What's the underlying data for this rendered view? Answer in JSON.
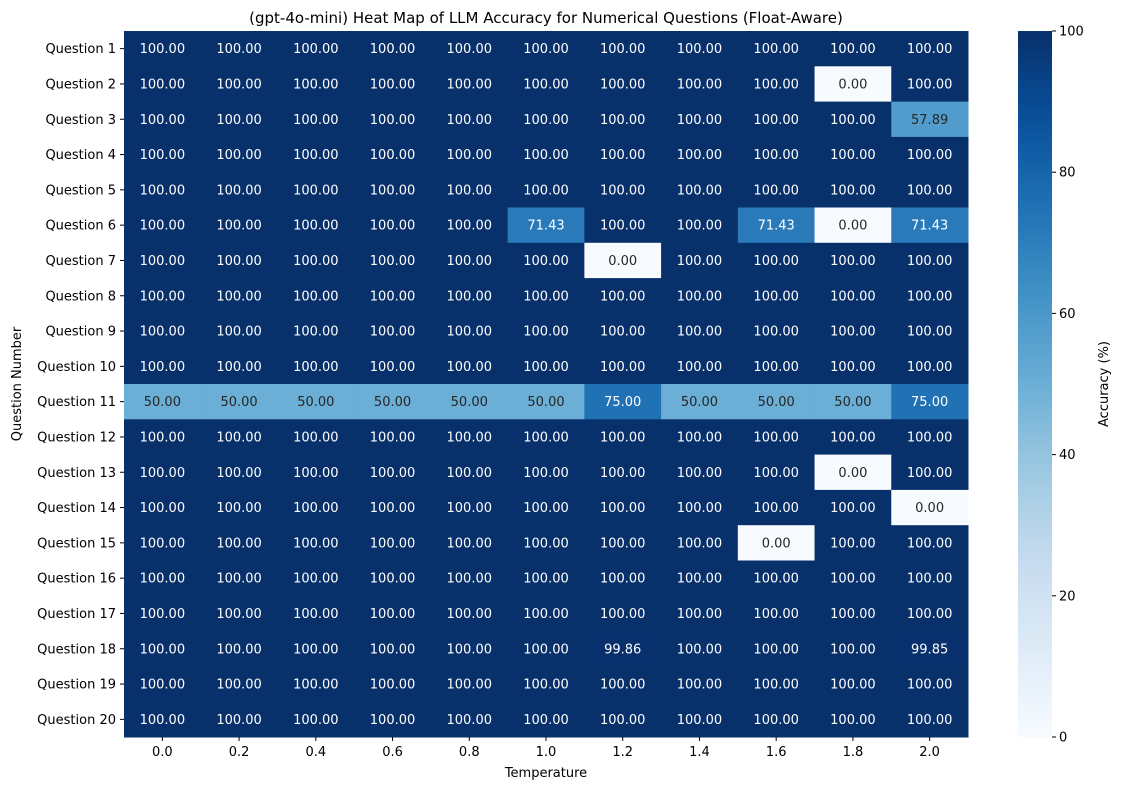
{
  "chart_data": {
    "type": "heatmap",
    "title": "(gpt-4o-mini) Heat Map of LLM Accuracy for Numerical Questions (Float-Aware)",
    "xlabel": "Temperature",
    "ylabel": "Question Number",
    "x": [
      "0.0",
      "0.2",
      "0.4",
      "0.6",
      "0.8",
      "1.0",
      "1.2",
      "1.4",
      "1.6",
      "1.8",
      "2.0"
    ],
    "y": [
      "Question 1",
      "Question 2",
      "Question 3",
      "Question 4",
      "Question 5",
      "Question 6",
      "Question 7",
      "Question 8",
      "Question 9",
      "Question 10",
      "Question 11",
      "Question 12",
      "Question 13",
      "Question 14",
      "Question 15",
      "Question 16",
      "Question 17",
      "Question 18",
      "Question 19",
      "Question 20"
    ],
    "values": [
      [
        100,
        100,
        100,
        100,
        100,
        100,
        100,
        100,
        100,
        100,
        100
      ],
      [
        100,
        100,
        100,
        100,
        100,
        100,
        100,
        100,
        100,
        0,
        100
      ],
      [
        100,
        100,
        100,
        100,
        100,
        100,
        100,
        100,
        100,
        100,
        57.89
      ],
      [
        100,
        100,
        100,
        100,
        100,
        100,
        100,
        100,
        100,
        100,
        100
      ],
      [
        100,
        100,
        100,
        100,
        100,
        100,
        100,
        100,
        100,
        100,
        100
      ],
      [
        100,
        100,
        100,
        100,
        100,
        71.43,
        100,
        100,
        71.43,
        0,
        71.43
      ],
      [
        100,
        100,
        100,
        100,
        100,
        100,
        0,
        100,
        100,
        100,
        100
      ],
      [
        100,
        100,
        100,
        100,
        100,
        100,
        100,
        100,
        100,
        100,
        100
      ],
      [
        100,
        100,
        100,
        100,
        100,
        100,
        100,
        100,
        100,
        100,
        100
      ],
      [
        100,
        100,
        100,
        100,
        100,
        100,
        100,
        100,
        100,
        100,
        100
      ],
      [
        50,
        50,
        50,
        50,
        50,
        50,
        75,
        50,
        50,
        50,
        75
      ],
      [
        100,
        100,
        100,
        100,
        100,
        100,
        100,
        100,
        100,
        100,
        100
      ],
      [
        100,
        100,
        100,
        100,
        100,
        100,
        100,
        100,
        100,
        0,
        100
      ],
      [
        100,
        100,
        100,
        100,
        100,
        100,
        100,
        100,
        100,
        100,
        0
      ],
      [
        100,
        100,
        100,
        100,
        100,
        100,
        100,
        100,
        0,
        100,
        100
      ],
      [
        100,
        100,
        100,
        100,
        100,
        100,
        100,
        100,
        100,
        100,
        100
      ],
      [
        100,
        100,
        100,
        100,
        100,
        100,
        100,
        100,
        100,
        100,
        100
      ],
      [
        100,
        100,
        100,
        100,
        100,
        100,
        99.86,
        100,
        100,
        100,
        99.85
      ],
      [
        100,
        100,
        100,
        100,
        100,
        100,
        100,
        100,
        100,
        100,
        100
      ],
      [
        100,
        100,
        100,
        100,
        100,
        100,
        100,
        100,
        100,
        100,
        100
      ]
    ],
    "value_format_decimals": 2,
    "colormap": "Blues",
    "colorbar": {
      "label": "Accuracy (%)",
      "range": [
        0,
        100
      ],
      "ticks": [
        0,
        20,
        40,
        60,
        80,
        100
      ]
    },
    "grid": false
  }
}
